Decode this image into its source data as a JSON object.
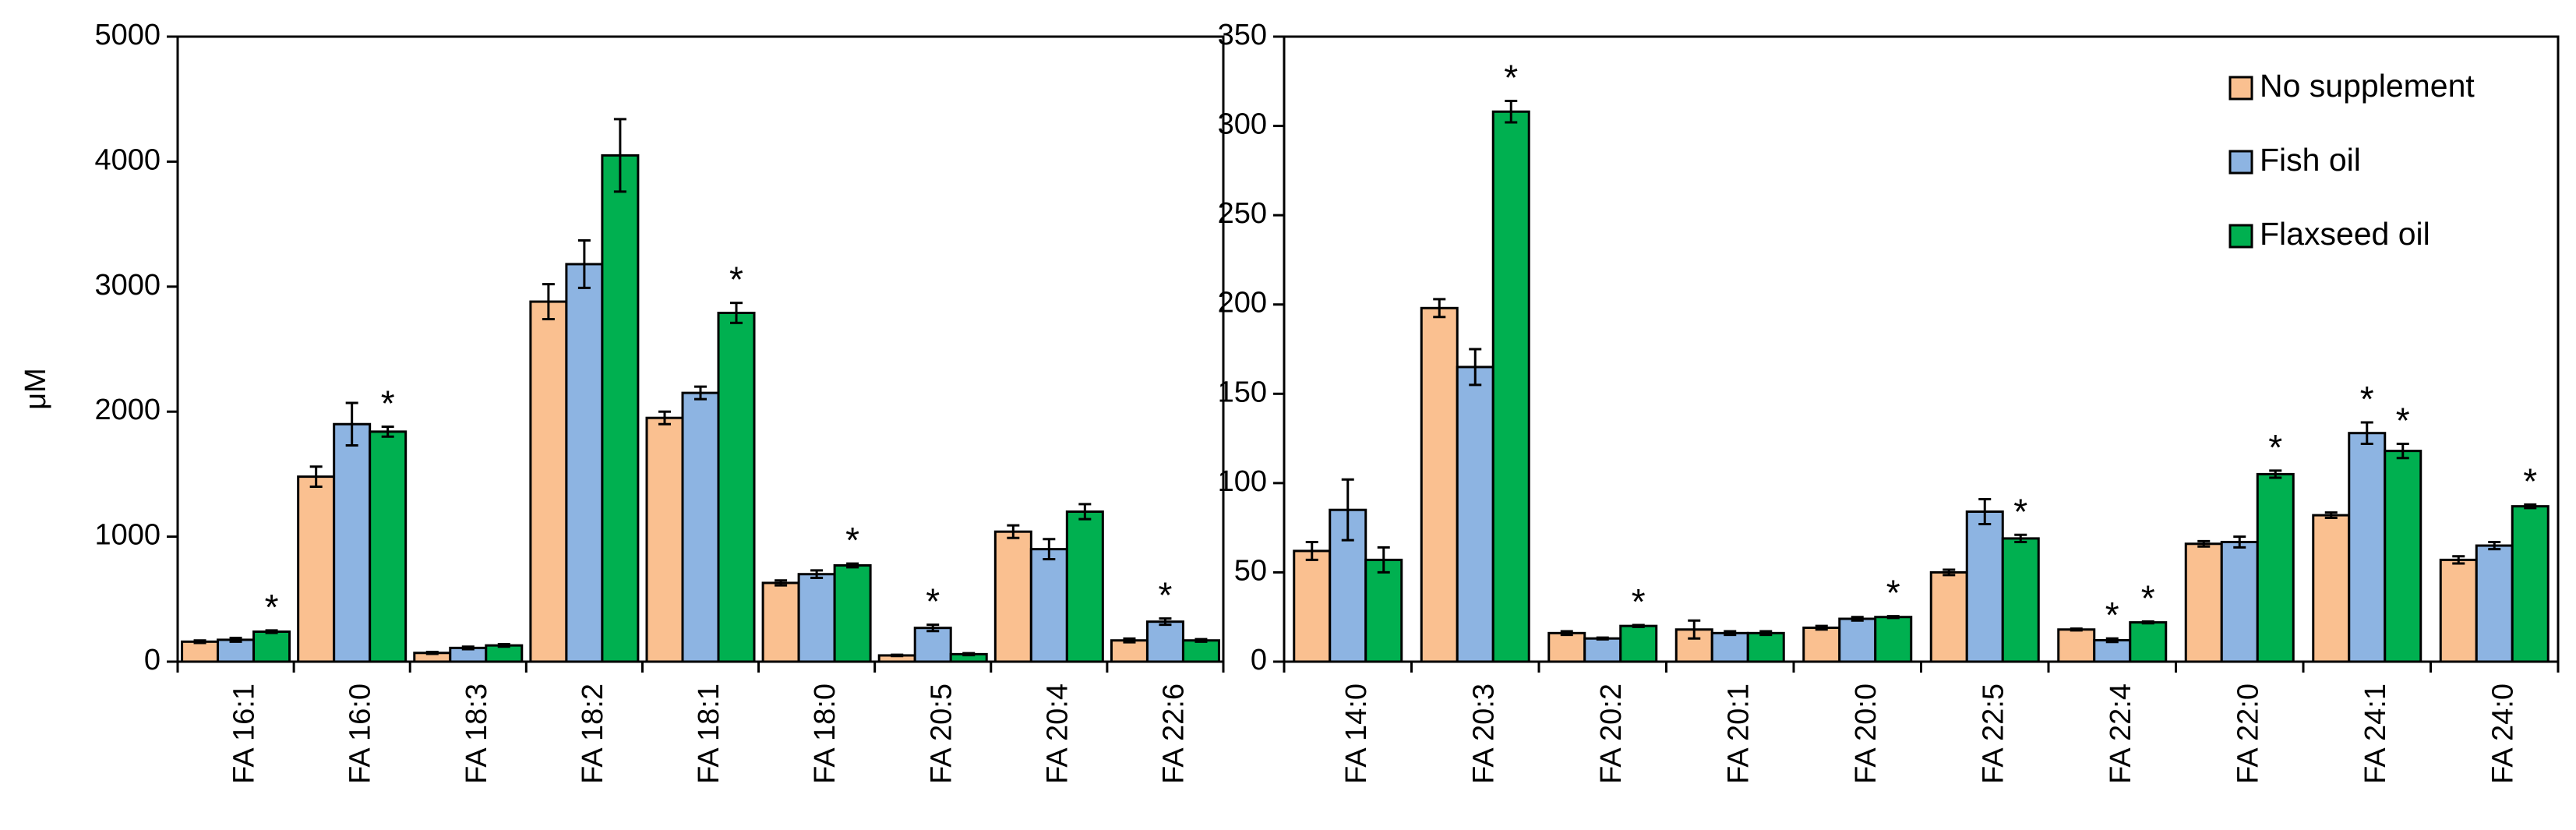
{
  "colors": {
    "series": [
      "#FAC090",
      "#8DB4E2",
      "#00B050"
    ],
    "edge": "#000000"
  },
  "legend": {
    "items": [
      "No supplement",
      "Fish oil",
      "Flaxseed oil"
    ]
  },
  "chart_data": [
    {
      "type": "bar",
      "title": "",
      "xlabel": "",
      "ylabel": "μM",
      "ylim": [
        0,
        5000
      ],
      "yticks": [
        "0",
        "1000",
        "2000",
        "3000",
        "4000",
        "5000"
      ],
      "categories": [
        "FA 16:1",
        "FA 16:0",
        "FA 18:3",
        "FA 18:2",
        "FA 18:1",
        "FA 18:0",
        "FA 20:5",
        "FA 20:4",
        "FA 22:6"
      ],
      "series": [
        {
          "name": "No supplement",
          "values": [
            160,
            1480,
            70,
            2880,
            1950,
            630,
            50,
            1040,
            170
          ],
          "errors": [
            10,
            80,
            8,
            140,
            50,
            20,
            5,
            50,
            15
          ]
        },
        {
          "name": "Fish oil",
          "values": [
            175,
            1900,
            110,
            3180,
            2150,
            700,
            270,
            900,
            320
          ],
          "errors": [
            15,
            170,
            10,
            190,
            50,
            30,
            25,
            80,
            25
          ]
        },
        {
          "name": "Flaxseed oil",
          "values": [
            240,
            1840,
            130,
            4050,
            2790,
            770,
            60,
            1200,
            170
          ],
          "errors": [
            10,
            40,
            10,
            290,
            80,
            15,
            8,
            60,
            10
          ]
        }
      ],
      "significance": [
        {
          "category": "FA 16:1",
          "series": "Flaxseed oil",
          "label": "*"
        },
        {
          "category": "FA 16:0",
          "series": "Flaxseed oil",
          "label": "*"
        },
        {
          "category": "FA 18:1",
          "series": "Flaxseed oil",
          "label": "*"
        },
        {
          "category": "FA 18:0",
          "series": "Flaxseed oil",
          "label": "*"
        },
        {
          "category": "FA 20:5",
          "series": "Fish oil",
          "label": "*"
        },
        {
          "category": "FA 22:6",
          "series": "Fish oil",
          "label": "*"
        }
      ]
    },
    {
      "type": "bar",
      "title": "",
      "xlabel": "",
      "ylabel": "",
      "ylim": [
        0,
        350
      ],
      "yticks": [
        "0",
        "50",
        "100",
        "150",
        "200",
        "250",
        "300",
        "350"
      ],
      "legend_position": "top-right",
      "categories": [
        "FA 14:0",
        "FA 20:3",
        "FA 20:2",
        "FA 20:1",
        "FA 20:0",
        "FA 22:5",
        "FA 22:4",
        "FA 22:0",
        "FA 24:1",
        "FA 24:0"
      ],
      "series": [
        {
          "name": "No supplement",
          "values": [
            62,
            198,
            16,
            18,
            19,
            50,
            18,
            66,
            82,
            57
          ],
          "errors": [
            5,
            5,
            1,
            5,
            1,
            1.5,
            0.5,
            1.5,
            1.5,
            2
          ]
        },
        {
          "name": "Fish oil",
          "values": [
            85,
            165,
            13,
            16,
            24,
            84,
            12,
            67,
            128,
            65
          ],
          "errors": [
            17,
            10,
            0.5,
            1,
            1,
            7,
            1,
            3,
            6,
            2
          ]
        },
        {
          "name": "Flaxseed oil",
          "values": [
            57,
            308,
            20,
            16,
            25,
            69,
            22,
            105,
            118,
            87
          ],
          "errors": [
            7,
            6,
            0.5,
            1,
            0.5,
            2,
            0.5,
            2,
            4,
            1
          ]
        }
      ],
      "significance": [
        {
          "category": "FA 20:3",
          "series": "Flaxseed oil",
          "label": "*"
        },
        {
          "category": "FA 20:2",
          "series": "Flaxseed oil",
          "label": "*"
        },
        {
          "category": "FA 20:0",
          "series": "Flaxseed oil",
          "label": "*"
        },
        {
          "category": "FA 22:5",
          "series": "Flaxseed oil",
          "label": "*"
        },
        {
          "category": "FA 22:4",
          "series": "Fish oil",
          "label": "*"
        },
        {
          "category": "FA 22:4",
          "series": "Flaxseed oil",
          "label": "*"
        },
        {
          "category": "FA 22:0",
          "series": "Flaxseed oil",
          "label": "*"
        },
        {
          "category": "FA 24:1",
          "series": "Fish oil",
          "label": "*"
        },
        {
          "category": "FA 24:1",
          "series": "Flaxseed oil",
          "label": "*"
        },
        {
          "category": "FA 24:0",
          "series": "Flaxseed oil",
          "label": "*"
        }
      ]
    }
  ]
}
